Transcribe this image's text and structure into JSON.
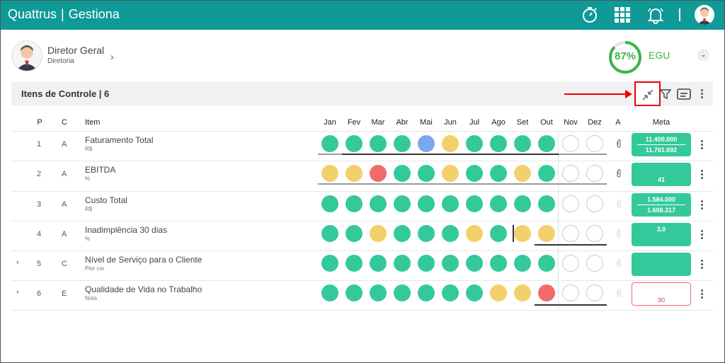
{
  "app": {
    "brand": "Quattrus",
    "module": "Gestiona"
  },
  "profile": {
    "name": "Diretor Geral",
    "subtitle": "Diretoria"
  },
  "score": {
    "value": "87%",
    "label": "EGU",
    "fraction": 0.87
  },
  "section": {
    "title": "Itens de Controle | 6"
  },
  "headers": {
    "p": "P",
    "c": "C",
    "item": "Item",
    "a": "A",
    "meta": "Meta",
    "months": [
      "Jan",
      "Fev",
      "Mar",
      "Abr",
      "Mai",
      "Jun",
      "Jul",
      "Ago",
      "Set",
      "Out",
      "Nov",
      "Dez"
    ]
  },
  "rows": [
    {
      "p": "1",
      "c": "A",
      "name": "Faturamento Total",
      "unit": "R$",
      "status": [
        "g",
        "g",
        "g",
        "g",
        "b",
        "y",
        "g",
        "g",
        "g",
        "g",
        "e",
        "e"
      ],
      "meta_top": "11.400.000",
      "meta_bottom": "11.761.692",
      "meta_style": "split",
      "attach_active": true
    },
    {
      "p": "2",
      "c": "A",
      "name": "EBITDA",
      "unit": "%",
      "status": [
        "y",
        "y",
        "r",
        "g",
        "g",
        "y",
        "g",
        "g",
        "y",
        "g",
        "e",
        "e"
      ],
      "meta_top": "",
      "meta_bottom": "41",
      "meta_style": "single",
      "attach_active": true
    },
    {
      "p": "3",
      "c": "A",
      "name": "Custo Total",
      "unit": "R$",
      "status": [
        "g",
        "g",
        "g",
        "g",
        "g",
        "g",
        "g",
        "g",
        "g",
        "g",
        "e",
        "e"
      ],
      "meta_top": "1.584.000",
      "meta_bottom": "1.608.317",
      "meta_style": "split",
      "attach_active": false
    },
    {
      "p": "4",
      "c": "A",
      "name": "Inadimplência 30 dias",
      "unit": "%",
      "status": [
        "g",
        "g",
        "y",
        "g",
        "g",
        "g",
        "y",
        "g",
        "y",
        "y",
        "e",
        "e"
      ],
      "meta_top": "3,0",
      "meta_bottom": "",
      "meta_style": "top",
      "attach_active": false
    },
    {
      "p": "5",
      "c": "C",
      "name": "Nível de Serviço para o Cliente",
      "unit": "Pior cor",
      "status": [
        "g",
        "g",
        "g",
        "g",
        "g",
        "g",
        "g",
        "g",
        "g",
        "g",
        "e",
        "e"
      ],
      "meta_top": "",
      "meta_bottom": "",
      "meta_style": "empty",
      "attach_active": false,
      "expandable": true
    },
    {
      "p": "6",
      "c": "E",
      "name": "Qualidade de Vida no Trabalho",
      "unit": "Nota",
      "status": [
        "g",
        "g",
        "g",
        "g",
        "g",
        "g",
        "g",
        "y",
        "y",
        "r",
        "e",
        "e"
      ],
      "meta_top": "",
      "meta_bottom": "90",
      "meta_style": "outline",
      "attach_active": false,
      "expandable": true
    }
  ],
  "icons": {
    "timer": "stopwatch-icon",
    "apps": "grid-icon",
    "notifications": "bell-icon",
    "collapse": "collapse-arrows-icon",
    "filter": "filter-icon",
    "view": "card-view-icon",
    "more": "kebab-icon"
  },
  "colors": {
    "topbar": "#0f9a98",
    "green": "#34c99b",
    "yellow": "#f2d06b",
    "red": "#f26b6b",
    "blue": "#7aa7f0"
  }
}
